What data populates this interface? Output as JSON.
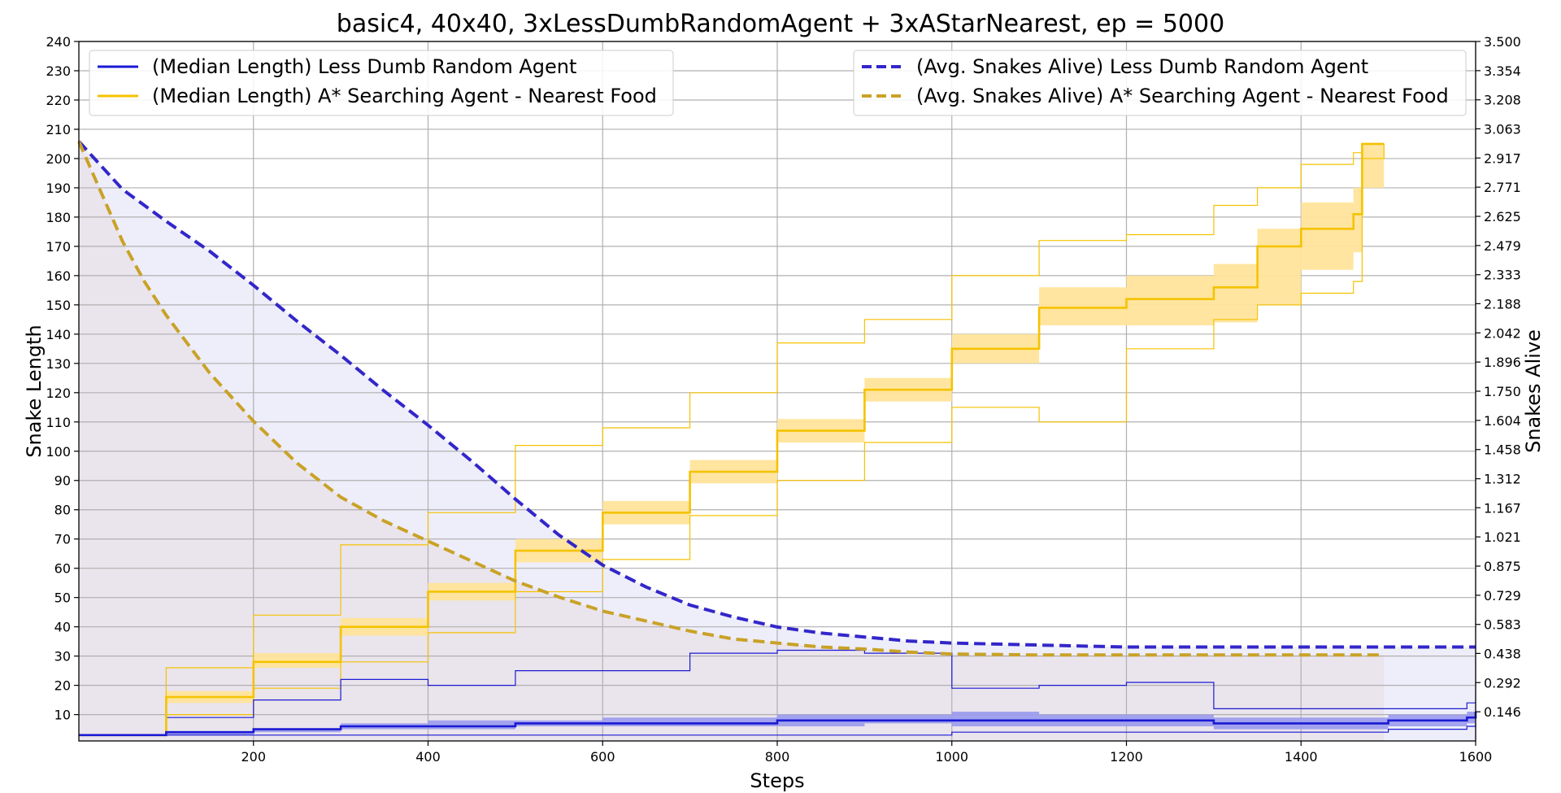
{
  "chart_data": {
    "type": "line",
    "title": "basic4, 40x40, 3xLessDumbRandomAgent + 3xAStarNearest, ep = 5000",
    "xlabel": "Steps",
    "ylabel": "Snake Length",
    "y2label": "Snakes Alive",
    "xlim": [
      0,
      1600
    ],
    "ylim": [
      1,
      240
    ],
    "y2lim": [
      0,
      3.5
    ],
    "grid": true,
    "colors": {
      "blue": "#1a1ad4",
      "blue_dash": "#3326c9",
      "gold": "#f5c200",
      "gold_dash": "#c9a227",
      "blue_band": "#9a9aee",
      "gold_band": "#ffe49a"
    },
    "x_ticks": [
      "200",
      "400",
      "600",
      "800",
      "1000",
      "1200",
      "1400",
      "1600"
    ],
    "y_ticks": [
      "10",
      "20",
      "30",
      "40",
      "50",
      "60",
      "70",
      "80",
      "90",
      "100",
      "110",
      "120",
      "130",
      "140",
      "150",
      "160",
      "170",
      "180",
      "190",
      "200",
      "210",
      "220",
      "230",
      "240"
    ],
    "y2_ticks": [
      "0.146",
      "0.292",
      "0.438",
      "0.583",
      "0.729",
      "0.875",
      "1.021",
      "1.167",
      "1.312",
      "1.458",
      "1.604",
      "1.750",
      "1.896",
      "2.042",
      "2.188",
      "2.333",
      "2.479",
      "2.625",
      "2.771",
      "2.917",
      "3.063",
      "3.208",
      "3.354",
      "3.500"
    ],
    "legend_left": {
      "placement": "upper-left",
      "entries": [
        "(Median Length) Less Dumb Random Agent",
        "(Median Length) A* Searching Agent - Nearest Food"
      ]
    },
    "legend_right": {
      "placement": "upper-right",
      "entries": [
        "(Avg. Snakes Alive) Less Dumb Random Agent",
        "(Avg. Snakes Alive) A* Searching Agent - Nearest Food"
      ]
    },
    "series": [
      {
        "name": "(Median Length) Less Dumb Random Agent",
        "axis": "left",
        "x": [
          0,
          100,
          200,
          300,
          400,
          500,
          600,
          700,
          800,
          900,
          1000,
          1100,
          1200,
          1300,
          1400,
          1500,
          1590,
          1600
        ],
        "median": [
          3,
          4,
          5,
          6,
          6,
          7,
          7,
          7,
          8,
          8,
          8,
          8,
          8,
          7,
          7,
          8,
          9,
          11
        ],
        "band_low": [
          3,
          3,
          4,
          5,
          5,
          6,
          6,
          6,
          6,
          7,
          6,
          6,
          6,
          5,
          5,
          6,
          7,
          8
        ],
        "band_high": [
          3,
          4,
          5,
          7,
          8,
          8,
          9,
          9,
          10,
          10,
          11,
          10,
          10,
          9,
          9,
          10,
          11,
          12
        ],
        "max": [
          3,
          9,
          15,
          22,
          20,
          25,
          25,
          31,
          32,
          31,
          19,
          20,
          21,
          12,
          12,
          12,
          14,
          14
        ],
        "min": [
          3,
          3,
          3,
          3,
          3,
          3,
          3,
          3,
          3,
          3,
          4,
          4,
          4,
          4,
          4,
          5,
          6,
          7
        ]
      },
      {
        "name": "(Median Length) A* Searching Agent - Nearest Food",
        "axis": "left",
        "x": [
          0,
          100,
          200,
          300,
          400,
          500,
          600,
          700,
          800,
          900,
          1000,
          1100,
          1200,
          1300,
          1350,
          1400,
          1460,
          1470,
          1495
        ],
        "median": [
          3,
          16,
          28,
          40,
          52,
          66,
          79,
          93,
          107,
          121,
          135,
          149,
          152,
          156,
          170,
          176,
          181,
          205,
          205
        ],
        "band_low": [
          3,
          14,
          26,
          37,
          49,
          62,
          75,
          89,
          103,
          117,
          130,
          143,
          143,
          144,
          150,
          162,
          168,
          190,
          205
        ],
        "band_high": [
          3,
          18,
          31,
          43,
          55,
          70,
          83,
          97,
          111,
          125,
          140,
          156,
          160,
          164,
          176,
          185,
          190,
          205,
          205
        ],
        "max": [
          3,
          26,
          44,
          68,
          79,
          102,
          108,
          120,
          137,
          145,
          160,
          172,
          174,
          184,
          190,
          198,
          202,
          205,
          205
        ],
        "min": [
          3,
          10,
          19,
          28,
          38,
          52,
          63,
          78,
          90,
          103,
          115,
          110,
          135,
          145,
          150,
          154,
          158,
          200,
          205
        ]
      },
      {
        "name": "(Avg. Snakes Alive) Less Dumb Random Agent",
        "axis": "right",
        "x": [
          0,
          50,
          100,
          150,
          200,
          250,
          300,
          350,
          400,
          450,
          500,
          550,
          600,
          650,
          700,
          750,
          800,
          850,
          900,
          950,
          1000,
          1100,
          1200,
          1300,
          1400,
          1500,
          1600
        ],
        "values": [
          3.0,
          2.76,
          2.6,
          2.45,
          2.28,
          2.1,
          1.93,
          1.75,
          1.58,
          1.4,
          1.21,
          1.03,
          0.88,
          0.77,
          0.68,
          0.62,
          0.57,
          0.54,
          0.52,
          0.5,
          0.49,
          0.48,
          0.47,
          0.47,
          0.47,
          0.47,
          0.47
        ]
      },
      {
        "name": "(Avg. Snakes Alive) A* Searching Agent - Nearest Food",
        "axis": "right",
        "x": [
          0,
          25,
          50,
          75,
          100,
          150,
          200,
          250,
          300,
          350,
          400,
          450,
          500,
          550,
          600,
          650,
          700,
          750,
          800,
          850,
          900,
          950,
          1000,
          1100,
          1200,
          1300,
          1400,
          1495
        ],
        "values": [
          3.0,
          2.75,
          2.5,
          2.3,
          2.13,
          1.84,
          1.6,
          1.39,
          1.22,
          1.1,
          1.0,
          0.9,
          0.8,
          0.72,
          0.65,
          0.6,
          0.55,
          0.51,
          0.49,
          0.47,
          0.46,
          0.445,
          0.435,
          0.43,
          0.43,
          0.43,
          0.43,
          0.43
        ]
      }
    ]
  }
}
